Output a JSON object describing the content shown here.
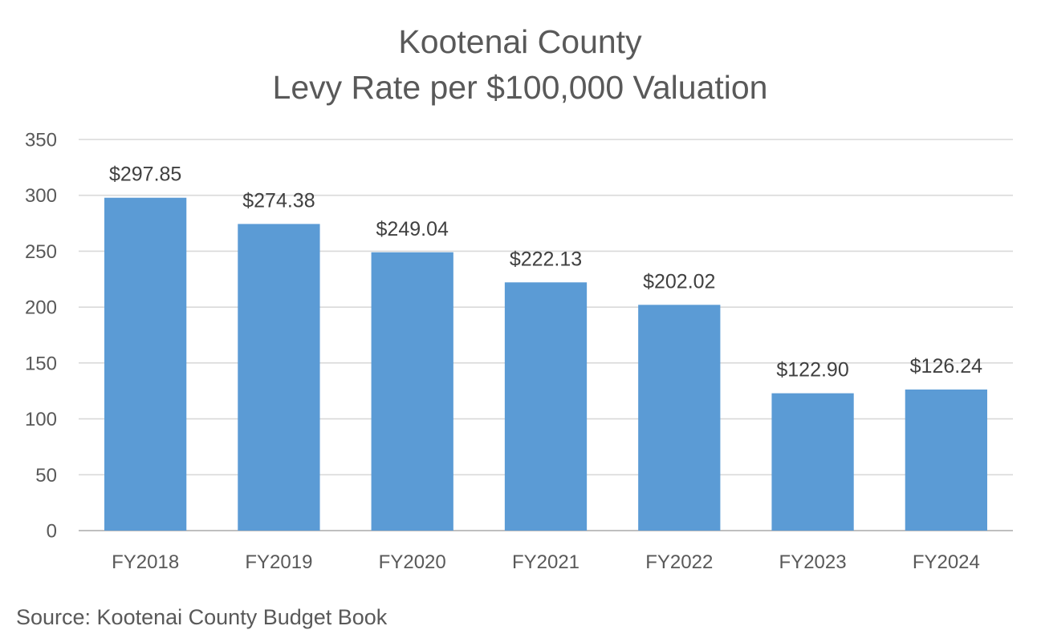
{
  "chart_data": {
    "type": "bar",
    "title": [
      "Kootenai County",
      "Levy Rate per $100,000 Valuation"
    ],
    "xlabel": "",
    "ylabel": "",
    "categories": [
      "FY2018",
      "FY2019",
      "FY2020",
      "FY2021",
      "FY2022",
      "FY2023",
      "FY2024"
    ],
    "values": [
      297.85,
      274.38,
      249.04,
      222.13,
      202.02,
      122.9,
      126.24
    ],
    "data_labels": [
      "$297.85",
      "$274.38",
      "$249.04",
      "$222.13",
      "$202.02",
      "$122.90",
      "$126.24"
    ],
    "ylim": [
      0,
      350
    ],
    "y_ticks": [
      0,
      50,
      100,
      150,
      200,
      250,
      300,
      350
    ],
    "grid": true,
    "legend": "none",
    "bar_color": "#5b9bd5",
    "gridline_color": "#d9d9d9",
    "text_color": "#595959"
  },
  "source_note": "Source:  Kootenai County Budget Book"
}
